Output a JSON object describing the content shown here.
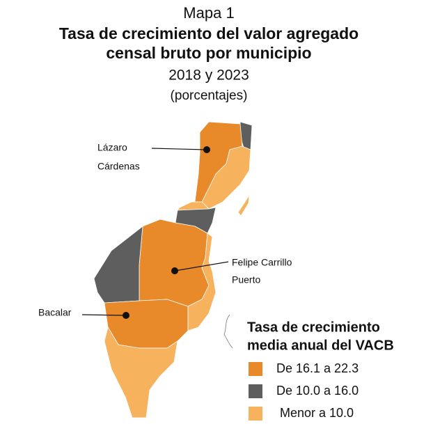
{
  "header": {
    "map_number": "Mapa 1",
    "title_lines": [
      "Tasa de crecimiento del valor agregado",
      "censal bruto por municipio"
    ],
    "subtitle": "2018 y 2023",
    "units": "(porcentajes)"
  },
  "labels": [
    {
      "lines": [
        "Lázaro",
        "Cárdenas"
      ]
    },
    {
      "lines": [
        "Felipe Carrillo",
        "Puerto"
      ]
    },
    {
      "lines": [
        "Bacalar"
      ]
    }
  ],
  "legend": {
    "title_lines": [
      "Tasa de crecimiento",
      "media anual del VACB"
    ],
    "items": [
      {
        "label": "De 16.1 a 22.3",
        "color": "#e8892a"
      },
      {
        "label": "De 10.0 a 16.0",
        "color": "#5e5e5e"
      },
      {
        "label": "Menor a 10.0",
        "color": "#f6b25c"
      }
    ]
  }
}
